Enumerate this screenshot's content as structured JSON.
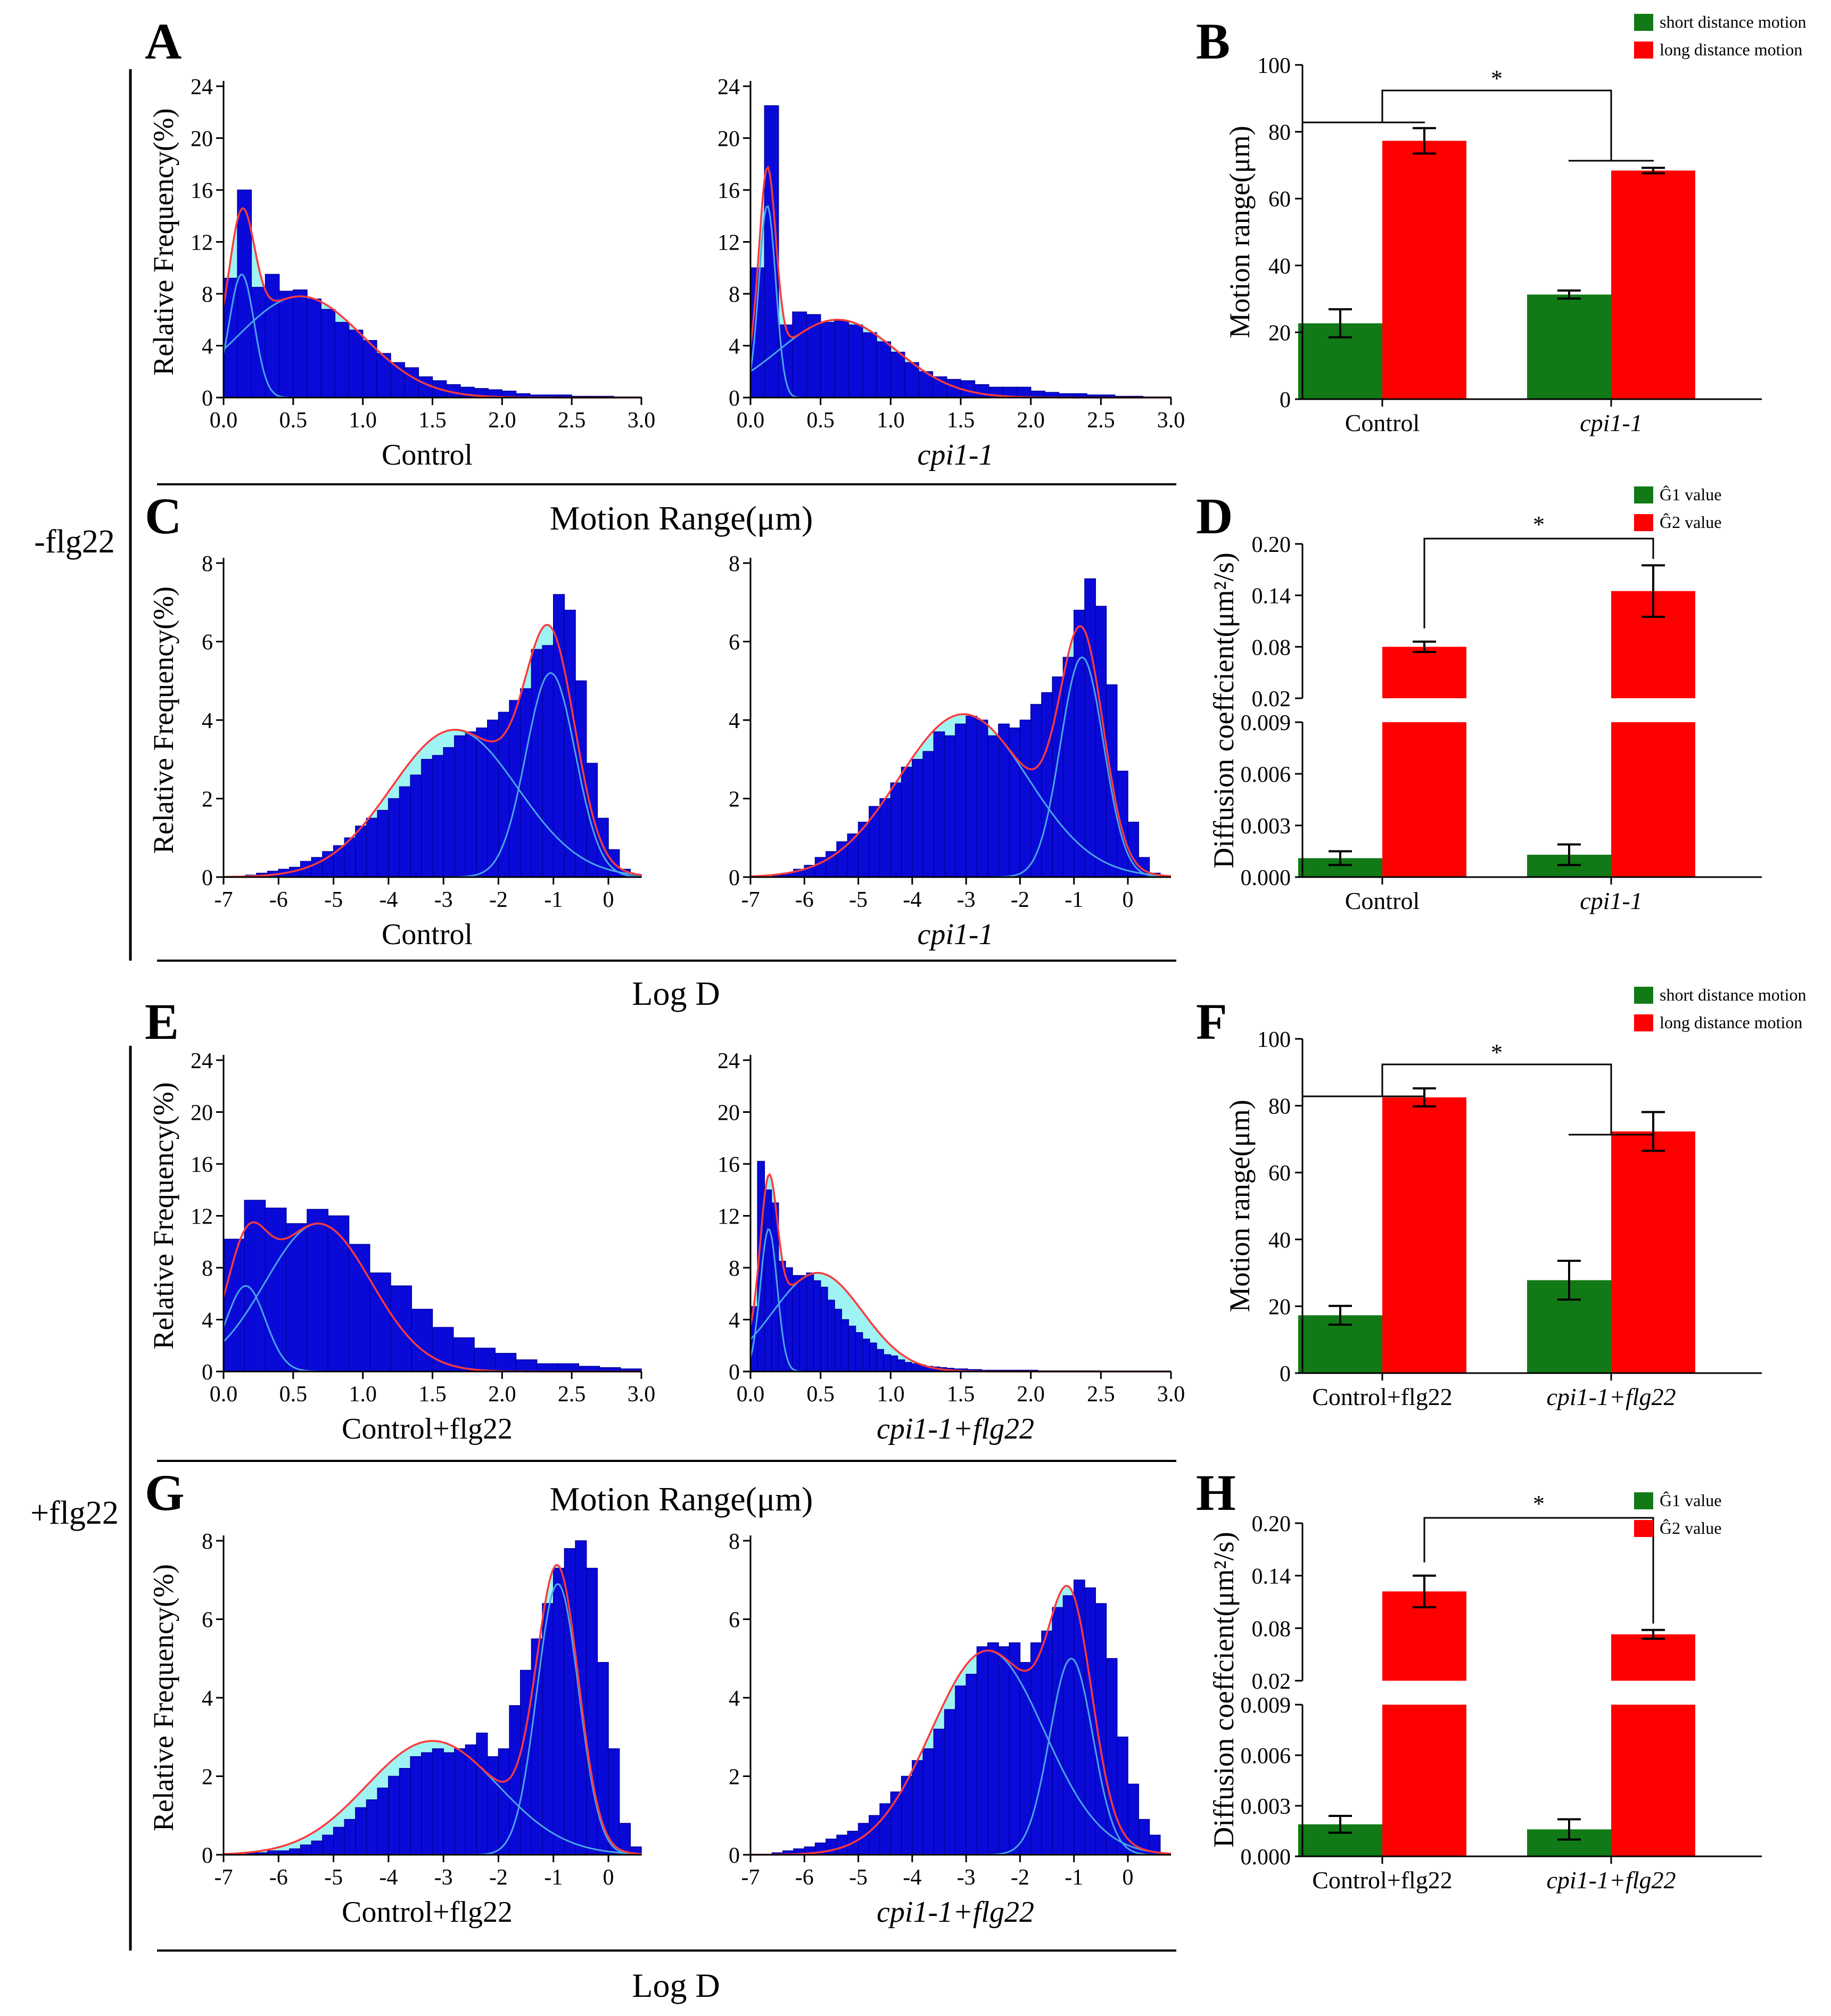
{
  "group_labels": {
    "minus": "-flg22",
    "plus": "+flg22"
  },
  "section_xlabels": {
    "A": "Motion Range(μm)",
    "C": "Log D",
    "E": "Motion Range(μm)",
    "G": "Log D"
  },
  "colors": {
    "bar": "#0a0ad8",
    "gauss_sum": "#ff3a3a",
    "gauss_comp": "#4aa6e8",
    "fill": "#9ff3f3",
    "green": "#117a17",
    "red": "#ff0000"
  },
  "chart_data": [
    {
      "id": "A1",
      "panel": "A",
      "type": "bar",
      "subtitle": "Control",
      "italic": false,
      "ylabel": "Relative Frequency(%)",
      "xlim": [
        0,
        3
      ],
      "ylim": [
        0,
        24
      ],
      "xticks": [
        0,
        0.5,
        1,
        1.5,
        2,
        2.5,
        3
      ],
      "xtick_labels": [
        "0.0",
        "0.5",
        "1.0",
        "1.5",
        "2.0",
        "2.5",
        "3.0"
      ],
      "yticks": [
        0,
        4,
        8,
        12,
        16,
        20,
        24
      ],
      "bin_start": 0,
      "bin_width": 0.1,
      "values": [
        9.2,
        16.0,
        8.5,
        9.5,
        8.2,
        8.3,
        7.6,
        6.8,
        5.8,
        5.2,
        4.4,
        3.4,
        2.7,
        2.3,
        1.6,
        1.3,
        1.0,
        0.8,
        0.7,
        0.6,
        0.5,
        0.3,
        0.2,
        0.2,
        0.2,
        0.1,
        0.1,
        0.1,
        0.05,
        0.05
      ],
      "components": [
        {
          "a": 9.5,
          "mu": 0.13,
          "s": 0.09
        },
        {
          "a": 7.8,
          "mu": 0.55,
          "s": 0.45
        }
      ]
    },
    {
      "id": "A2",
      "panel": "A",
      "type": "bar",
      "subtitle": "cpi1-1",
      "italic": true,
      "ylabel": "",
      "xlim": [
        0,
        3
      ],
      "ylim": [
        0,
        24
      ],
      "xticks": [
        0,
        0.5,
        1,
        1.5,
        2,
        2.5,
        3
      ],
      "xtick_labels": [
        "0.0",
        "0.5",
        "1.0",
        "1.5",
        "2.0",
        "2.5",
        "3.0"
      ],
      "yticks": [
        0,
        4,
        8,
        12,
        16,
        20,
        24
      ],
      "bin_start": 0,
      "bin_width": 0.1,
      "values": [
        10.0,
        22.5,
        5.6,
        6.6,
        6.4,
        5.8,
        5.9,
        5.6,
        5.0,
        4.3,
        3.5,
        2.7,
        2.0,
        1.6,
        1.4,
        1.3,
        1.0,
        0.8,
        0.8,
        0.8,
        0.5,
        0.4,
        0.3,
        0.3,
        0.2,
        0.2,
        0.1,
        0.1,
        0.05,
        0.05
      ],
      "components": [
        {
          "a": 14.8,
          "mu": 0.12,
          "s": 0.06
        },
        {
          "a": 6.0,
          "mu": 0.62,
          "s": 0.42
        }
      ]
    },
    {
      "id": "C1",
      "panel": "C",
      "type": "bar",
      "subtitle": "Control",
      "italic": false,
      "ylabel": "Relative Frequency(%)",
      "xlim": [
        -7,
        0.6
      ],
      "ylim": [
        0,
        8
      ],
      "xticks": [
        -7,
        -6,
        -5,
        -4,
        -3,
        -2,
        -1,
        0
      ],
      "xtick_labels": [
        "-7",
        "-6",
        "-5",
        "-4",
        "-3",
        "-2",
        "-1",
        "0"
      ],
      "yticks": [
        0,
        2,
        4,
        6,
        8
      ],
      "bin_start": -7,
      "bin_width": 0.2,
      "values": [
        0,
        0,
        0.05,
        0.1,
        0.15,
        0.2,
        0.25,
        0.4,
        0.5,
        0.65,
        0.8,
        1.0,
        1.3,
        1.5,
        1.7,
        2.0,
        2.3,
        2.6,
        3.0,
        3.1,
        3.3,
        3.6,
        3.7,
        3.8,
        4.0,
        4.2,
        4.5,
        4.8,
        5.8,
        5.9,
        7.2,
        6.8,
        5.0,
        2.9,
        1.5,
        0.7,
        0.2,
        0.05
      ],
      "components": [
        {
          "a": 3.75,
          "mu": -2.8,
          "s": 1.15
        },
        {
          "a": 5.2,
          "mu": -1.05,
          "s": 0.45
        }
      ]
    },
    {
      "id": "C2",
      "panel": "C",
      "type": "bar",
      "subtitle": "cpi1-1",
      "italic": true,
      "ylabel": "",
      "xlim": [
        -7,
        0.8
      ],
      "ylim": [
        0,
        8
      ],
      "xticks": [
        -7,
        -6,
        -5,
        -4,
        -3,
        -2,
        -1,
        0
      ],
      "xtick_labels": [
        "-7",
        "-6",
        "-5",
        "-4",
        "-3",
        "-2",
        "-1",
        "0"
      ],
      "yticks": [
        0,
        2,
        4,
        6,
        8
      ],
      "bin_start": -7,
      "bin_width": 0.2,
      "values": [
        0,
        0,
        0.05,
        0.1,
        0.2,
        0.3,
        0.5,
        0.65,
        0.9,
        1.1,
        1.4,
        1.8,
        2.0,
        2.4,
        2.8,
        3.0,
        3.2,
        3.7,
        3.6,
        3.9,
        4.1,
        4.0,
        3.6,
        3.9,
        3.8,
        4.0,
        4.4,
        4.7,
        5.1,
        5.6,
        6.8,
        7.6,
        6.9,
        4.9,
        2.7,
        1.4,
        0.5,
        0.1
      ],
      "components": [
        {
          "a": 4.15,
          "mu": -3.05,
          "s": 1.2
        },
        {
          "a": 5.6,
          "mu": -0.85,
          "s": 0.4
        }
      ]
    },
    {
      "id": "E1",
      "panel": "E",
      "type": "bar",
      "subtitle": "Control+flg22",
      "italic": false,
      "ylabel": "Relative Frequency(%)",
      "xlim": [
        0,
        3
      ],
      "ylim": [
        0,
        24
      ],
      "xticks": [
        0,
        0.5,
        1,
        1.5,
        2,
        2.5,
        3
      ],
      "xtick_labels": [
        "0.0",
        "0.5",
        "1.0",
        "1.5",
        "2.0",
        "2.5",
        "3.0"
      ],
      "yticks": [
        0,
        4,
        8,
        12,
        16,
        20,
        24
      ],
      "bin_start": 0,
      "bin_width": 0.15,
      "values": [
        10.2,
        13.2,
        12.6,
        11.4,
        12.5,
        12.0,
        9.8,
        7.6,
        6.6,
        4.8,
        3.4,
        2.6,
        1.8,
        1.4,
        0.9,
        0.6,
        0.6,
        0.4,
        0.3,
        0.2
      ],
      "components": [
        {
          "a": 6.6,
          "mu": 0.16,
          "s": 0.14
        },
        {
          "a": 11.4,
          "mu": 0.68,
          "s": 0.38
        }
      ]
    },
    {
      "id": "E2",
      "panel": "E",
      "type": "bar",
      "subtitle": "cpi1-1+flg22",
      "italic": true,
      "ylabel": "",
      "xlim": [
        0,
        3
      ],
      "ylim": [
        0,
        24
      ],
      "xticks": [
        0,
        0.5,
        1,
        1.5,
        2,
        2.5,
        3
      ],
      "xtick_labels": [
        "0.0",
        "0.5",
        "1.0",
        "1.5",
        "2.0",
        "2.5",
        "3.0"
      ],
      "yticks": [
        0,
        4,
        8,
        12,
        16,
        20,
        24
      ],
      "bin_start": 0,
      "bin_width": 0.05,
      "values": [
        5.0,
        16.2,
        14.0,
        13.0,
        8.5,
        8.0,
        7.4,
        7.4,
        7.6,
        7.0,
        6.5,
        5.5,
        4.8,
        4.0,
        3.5,
        3.0,
        2.5,
        2.2,
        1.7,
        1.3,
        1.2,
        0.9,
        0.7,
        0.6,
        0.5,
        0.4,
        0.35,
        0.3,
        0.25,
        0.2,
        0.2,
        0.15,
        0.15,
        0.1,
        0.1,
        0.1,
        0.1,
        0.1,
        0.1,
        0.1,
        0.1,
        0.05,
        0.05,
        0.05,
        0.05,
        0.05,
        0.05,
        0.05,
        0.05,
        0.05
      ],
      "components": [
        {
          "a": 11.0,
          "mu": 0.13,
          "s": 0.06
        },
        {
          "a": 7.6,
          "mu": 0.48,
          "s": 0.32
        }
      ]
    },
    {
      "id": "G1",
      "panel": "G",
      "type": "bar",
      "subtitle": "Control+flg22",
      "italic": false,
      "ylabel": "Relative Frequency(%)",
      "xlim": [
        -7,
        0.6
      ],
      "ylim": [
        0,
        8
      ],
      "xticks": [
        -7,
        -6,
        -5,
        -4,
        -3,
        -2,
        -1,
        0
      ],
      "xtick_labels": [
        "-7",
        "-6",
        "-5",
        "-4",
        "-3",
        "-2",
        "-1",
        "0"
      ],
      "yticks": [
        0,
        2,
        4,
        6,
        8
      ],
      "bin_start": -7,
      "bin_width": 0.2,
      "values": [
        0,
        0,
        0.05,
        0.05,
        0.1,
        0.1,
        0.15,
        0.25,
        0.35,
        0.5,
        0.7,
        0.9,
        1.2,
        1.4,
        1.7,
        2.0,
        2.2,
        2.5,
        2.6,
        2.7,
        2.6,
        2.7,
        2.8,
        3.1,
        2.5,
        2.7,
        3.8,
        4.7,
        5.5,
        6.4,
        7.3,
        7.8,
        8.0,
        7.3,
        4.9,
        2.7,
        0.8,
        0.2
      ],
      "components": [
        {
          "a": 2.9,
          "mu": -3.2,
          "s": 1.2
        },
        {
          "a": 6.9,
          "mu": -0.92,
          "s": 0.38
        }
      ]
    },
    {
      "id": "G2",
      "panel": "G",
      "type": "bar",
      "subtitle": "cpi1-1+flg22",
      "italic": true,
      "ylabel": "",
      "xlim": [
        -7,
        0.8
      ],
      "ylim": [
        0,
        8
      ],
      "xticks": [
        -7,
        -6,
        -5,
        -4,
        -3,
        -2,
        -1,
        0
      ],
      "xtick_labels": [
        "-7",
        "-6",
        "-5",
        "-4",
        "-3",
        "-2",
        "-1",
        "0"
      ],
      "yticks": [
        0,
        2,
        4,
        6,
        8
      ],
      "bin_start": -7,
      "bin_width": 0.2,
      "values": [
        0,
        0,
        0.05,
        0.1,
        0.15,
        0.2,
        0.3,
        0.4,
        0.5,
        0.6,
        0.8,
        1.0,
        1.3,
        1.6,
        2.0,
        2.4,
        2.7,
        3.2,
        3.7,
        4.3,
        4.6,
        5.3,
        5.4,
        5.3,
        5.4,
        4.9,
        5.4,
        5.7,
        6.3,
        6.6,
        7.0,
        6.8,
        6.4,
        5.0,
        3.0,
        1.8,
        0.9,
        0.5
      ],
      "components": [
        {
          "a": 5.2,
          "mu": -2.6,
          "s": 1.05
        },
        {
          "a": 5.0,
          "mu": -1.05,
          "s": 0.4
        }
      ]
    },
    {
      "id": "B",
      "panel": "B",
      "type": "bar",
      "subtitle": "",
      "ylabel": "Motion range(μm)",
      "categories": [
        "Control",
        "cpi1-1"
      ],
      "categories_italic": [
        false,
        true
      ],
      "series": [
        {
          "name": "short distance motion",
          "values": [
            22.7,
            31.3
          ],
          "errors": [
            4.2,
            1.2
          ]
        },
        {
          "name": "long distance motion",
          "values": [
            77.3,
            68.4
          ],
          "errors": [
            3.8,
            0.8
          ]
        }
      ],
      "ylim": [
        0,
        100
      ],
      "yticks": [
        0,
        20,
        40,
        60,
        80,
        100
      ],
      "significance": "*",
      "legend": "top-right"
    },
    {
      "id": "D",
      "panel": "D",
      "type": "bar",
      "subtitle": "",
      "ylabel": "Diffusion coeffcient(μm²/s)",
      "categories": [
        "Control",
        "cpi1-1"
      ],
      "categories_italic": [
        false,
        true
      ],
      "series": [
        {
          "name": "Ĝ1 value",
          "values": [
            0.0011,
            0.0013
          ],
          "errors": [
            0.0004,
            0.0006
          ]
        },
        {
          "name": "Ĝ2 value",
          "values": [
            0.08,
            0.145
          ],
          "errors": [
            0.006,
            0.03
          ]
        }
      ],
      "broken_axis": {
        "lower": [
          0,
          0.009
        ],
        "upper": [
          0.02,
          0.2
        ]
      },
      "lower_ticks": [
        "0.000",
        "0.003",
        "0.006",
        "0.009"
      ],
      "upper_ticks": [
        "0.02",
        "0.08",
        "0.14",
        "0.20"
      ],
      "significance": "*",
      "legend": "top-right"
    },
    {
      "id": "F",
      "panel": "F",
      "type": "bar",
      "subtitle": "",
      "ylabel": "Motion range(μm)",
      "categories": [
        "Control+flg22",
        "cpi1-1+flg22"
      ],
      "categories_italic": [
        false,
        true
      ],
      "series": [
        {
          "name": "short distance motion",
          "values": [
            17.3,
            27.8
          ],
          "errors": [
            2.8,
            5.8
          ]
        },
        {
          "name": "long distance motion",
          "values": [
            82.5,
            72.3
          ],
          "errors": [
            2.7,
            5.8
          ]
        }
      ],
      "ylim": [
        0,
        100
      ],
      "yticks": [
        0,
        20,
        40,
        60,
        80,
        100
      ],
      "significance": "*",
      "legend": "top-right"
    },
    {
      "id": "H",
      "panel": "H",
      "type": "bar",
      "subtitle": "",
      "ylabel": "Diffusion coeffcient(μm²/s)",
      "categories": [
        "Control+flg22",
        "cpi1-1+flg22"
      ],
      "categories_italic": [
        false,
        true
      ],
      "series": [
        {
          "name": "Ĝ1 value",
          "values": [
            0.0019,
            0.0016
          ],
          "errors": [
            0.0005,
            0.0006
          ]
        },
        {
          "name": "Ĝ2 value",
          "values": [
            0.122,
            0.073
          ],
          "errors": [
            0.018,
            0.005
          ]
        }
      ],
      "broken_axis": {
        "lower": [
          0,
          0.009
        ],
        "upper": [
          0.02,
          0.2
        ]
      },
      "lower_ticks": [
        "0.000",
        "0.003",
        "0.006",
        "0.009"
      ],
      "upper_ticks": [
        "0.02",
        "0.08",
        "0.14",
        "0.20"
      ],
      "significance": "*",
      "legend": "top-right"
    }
  ]
}
